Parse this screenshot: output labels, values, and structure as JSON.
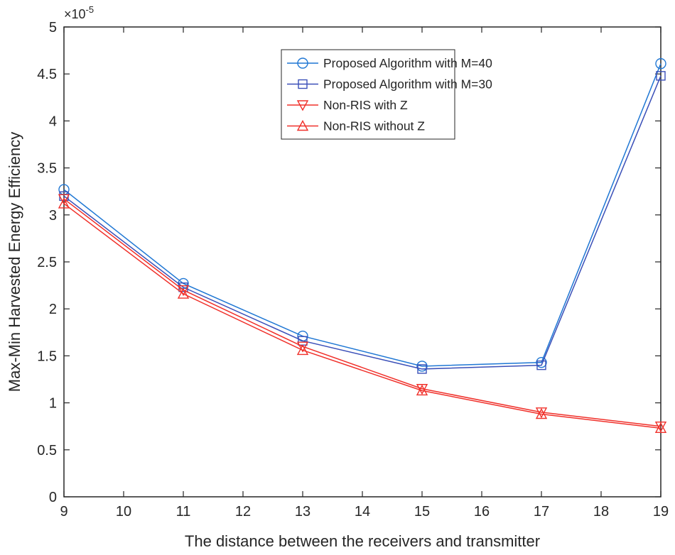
{
  "chart_data": {
    "type": "line",
    "title": "",
    "xlabel": "The distance between the receivers and transmitter",
    "ylabel": "Max-Min Harvested Energy Efficiency",
    "y_exponent_label": "×10",
    "y_exponent": "-5",
    "xlim": [
      9,
      19
    ],
    "ylim": [
      0,
      5
    ],
    "xticks": [
      9,
      10,
      11,
      12,
      13,
      14,
      15,
      16,
      17,
      18,
      19
    ],
    "yticks": [
      0,
      0.5,
      1,
      1.5,
      2,
      2.5,
      3,
      3.5,
      4,
      4.5,
      5
    ],
    "grid": false,
    "legend_position": "top-right",
    "x": [
      9,
      11,
      13,
      15,
      17,
      19
    ],
    "series": [
      {
        "name": "Proposed Algorithm with M=40",
        "color": "#1f77d4",
        "marker": "circle",
        "values": [
          3.27,
          2.27,
          1.71,
          1.39,
          1.43,
          4.61
        ]
      },
      {
        "name": "Proposed Algorithm with M=30",
        "color": "#3a4fb8",
        "marker": "square",
        "values": [
          3.2,
          2.23,
          1.66,
          1.36,
          1.4,
          4.48
        ]
      },
      {
        "name": "Non-RIS with Z",
        "color": "#f0302a",
        "marker": "triangle-down",
        "values": [
          3.17,
          2.2,
          1.6,
          1.15,
          0.9,
          0.75
        ]
      },
      {
        "name": "Non-RIS without Z",
        "color": "#f0302a",
        "marker": "triangle-up",
        "values": [
          3.12,
          2.16,
          1.56,
          1.13,
          0.88,
          0.73
        ]
      }
    ]
  }
}
